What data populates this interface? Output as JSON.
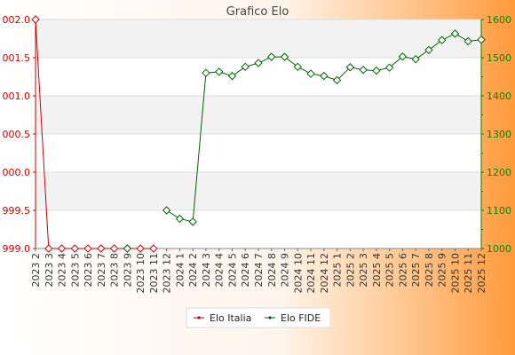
{
  "chart_data": {
    "type": "line",
    "title": "Grafico Elo",
    "categories": [
      "2023 2",
      "2023 3",
      "2023 4",
      "2023 5",
      "2023 6",
      "2023 7",
      "2023 8",
      "2023 9",
      "2023 10",
      "2023 11",
      "2023 12",
      "2024 1",
      "2024 2",
      "2024 3",
      "2024 4",
      "2024 5",
      "2024 6",
      "2024 7",
      "2024 8",
      "2024 9",
      "2024 10",
      "2024 11",
      "2024 12",
      "2025 1",
      "2025 2",
      "2025 3",
      "2025 4",
      "2025 5",
      "2025 6",
      "2025 7",
      "2025 8",
      "2025 9",
      "2025 10",
      "2025 11",
      "2025 12"
    ],
    "left_axis": {
      "ylim": [
        999.0,
        1002.0
      ],
      "ticks": [
        "999.0",
        "999.5",
        "000.0",
        "000.5",
        "001.0",
        "001.5",
        "002.0"
      ],
      "color": "#cc0000"
    },
    "right_axis": {
      "ylim": [
        1000,
        1600
      ],
      "ticks": [
        "1000",
        "1100",
        "1200",
        "1300",
        "1400",
        "1500",
        "1600"
      ],
      "color": "#008800"
    },
    "series": [
      {
        "name": "Elo Italia",
        "axis": "left",
        "color": "#cc0000",
        "values": [
          1002.0,
          999.0,
          999.0,
          999.0,
          999.0,
          999.0,
          999.0,
          999.0,
          999.0,
          999.0,
          null,
          null,
          null,
          null,
          null,
          null,
          null,
          null,
          null,
          null,
          null,
          null,
          null,
          null,
          null,
          null,
          null,
          null,
          null,
          null,
          null,
          null,
          null,
          null,
          null
        ]
      },
      {
        "name": "Elo FIDE",
        "axis": "right",
        "color": "#006600",
        "values": [
          null,
          null,
          null,
          null,
          null,
          null,
          null,
          1000,
          null,
          null,
          1100,
          1078,
          1070,
          1460,
          1463,
          1452,
          1476,
          1486,
          1502,
          1502,
          1476,
          1458,
          1452,
          1441,
          1475,
          1468,
          1466,
          1474,
          1503,
          1496,
          1520,
          1546,
          1563,
          1543,
          1547
        ]
      }
    ],
    "grid": true,
    "legend_position": "bottom-center"
  }
}
